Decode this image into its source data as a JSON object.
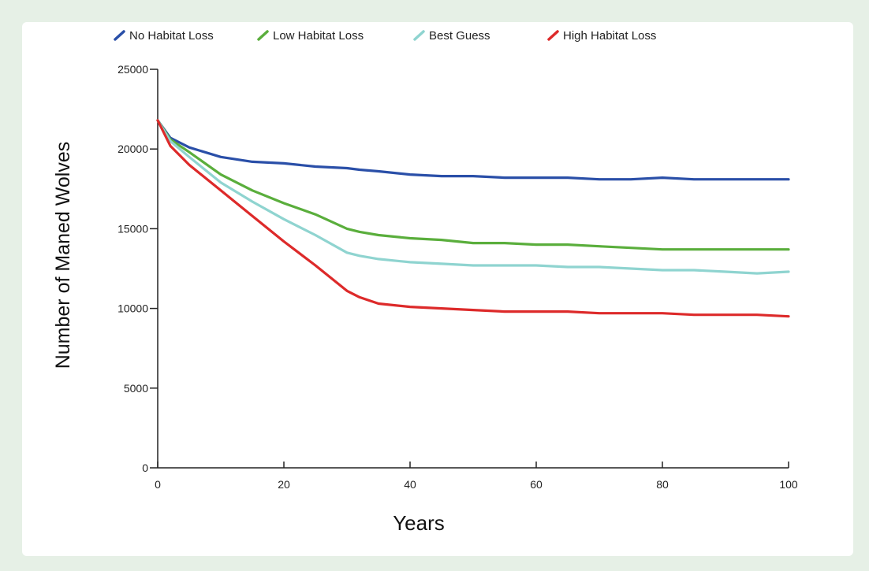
{
  "chart_data": {
    "type": "line",
    "xlabel": "Years",
    "ylabel": "Number of Maned Wolves",
    "xlim": [
      0,
      100
    ],
    "ylim": [
      0,
      25000
    ],
    "x_ticks": [
      0,
      20,
      40,
      60,
      80,
      100
    ],
    "y_ticks": [
      0,
      5000,
      10000,
      15000,
      20000,
      25000
    ],
    "legend_position": "top",
    "grid": false,
    "x": [
      0,
      2,
      5,
      10,
      15,
      20,
      25,
      30,
      32,
      35,
      40,
      45,
      50,
      55,
      60,
      65,
      70,
      75,
      80,
      85,
      90,
      95,
      100
    ],
    "series": [
      {
        "name": "No Habitat Loss",
        "color": "#2a4fa8",
        "values": [
          21800,
          20700,
          20100,
          19500,
          19200,
          19100,
          18900,
          18800,
          18700,
          18600,
          18400,
          18300,
          18300,
          18200,
          18200,
          18200,
          18100,
          18100,
          18200,
          18100,
          18100,
          18100,
          18100
        ]
      },
      {
        "name": "Low Habitat Loss",
        "color": "#5aae3c",
        "values": [
          21800,
          20600,
          19800,
          18400,
          17400,
          16600,
          15900,
          15000,
          14800,
          14600,
          14400,
          14300,
          14100,
          14100,
          14000,
          14000,
          13900,
          13800,
          13700,
          13700,
          13700,
          13700,
          13700
        ]
      },
      {
        "name": "Best Guess",
        "color": "#8fd4d0",
        "values": [
          21800,
          20500,
          19500,
          17900,
          16700,
          15600,
          14600,
          13500,
          13300,
          13100,
          12900,
          12800,
          12700,
          12700,
          12700,
          12600,
          12600,
          12500,
          12400,
          12400,
          12300,
          12200,
          12300
        ]
      },
      {
        "name": "High Habitat Loss",
        "color": "#dd2a2a",
        "values": [
          21800,
          20200,
          19000,
          17400,
          15800,
          14200,
          12700,
          11100,
          10700,
          10300,
          10100,
          10000,
          9900,
          9800,
          9800,
          9800,
          9700,
          9700,
          9700,
          9600,
          9600,
          9600,
          9500
        ]
      }
    ]
  }
}
